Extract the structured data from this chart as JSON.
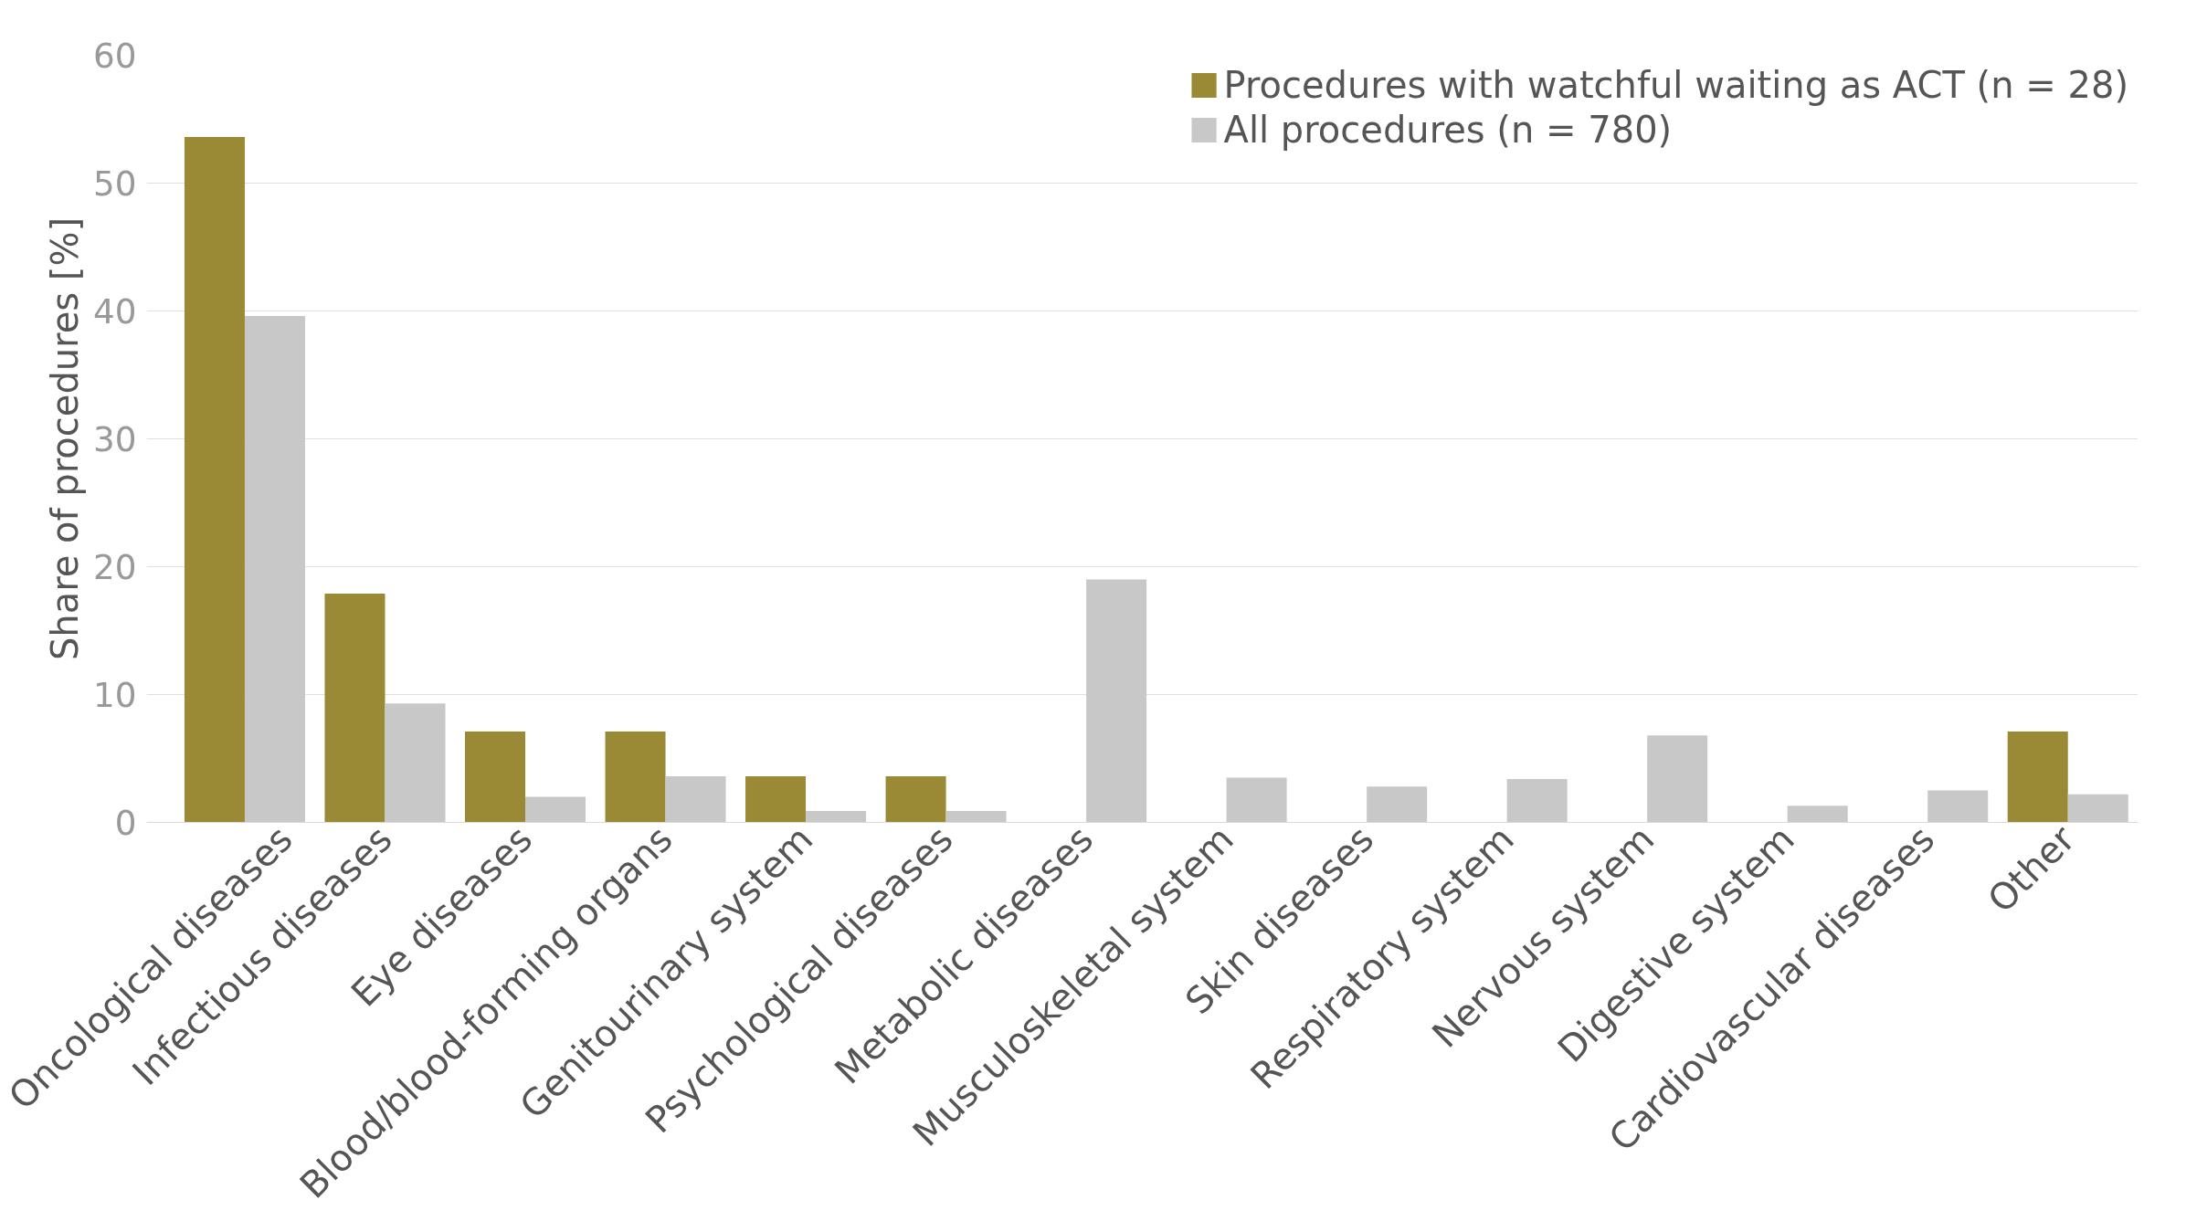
{
  "chart_data": {
    "type": "bar",
    "ylabel": "Share of procedures [%]",
    "categories": [
      "Oncological diseases",
      "Infectious diseases",
      "Eye diseases",
      "Blood/blood-forming organs",
      "Genitourinary system",
      "Psychological diseases",
      "Metabolic diseases",
      "Musculoskeletal system",
      "Skin diseases",
      "Respiratory system",
      "Nervous system",
      "Digestive system",
      "Cardiovascular diseases",
      "Other"
    ],
    "series": [
      {
        "name": "Procedures with watchful waiting as ACT (n = 28)",
        "color": "#9a8935",
        "values": [
          53.6,
          17.9,
          7.1,
          7.1,
          3.6,
          3.6,
          0,
          0,
          0,
          0,
          0,
          0,
          0,
          7.1
        ]
      },
      {
        "name": "All procedures (n = 780)",
        "color": "#c8c8c8",
        "values": [
          39.6,
          9.3,
          2.0,
          3.6,
          0.9,
          0.9,
          19.0,
          3.5,
          2.8,
          3.4,
          6.8,
          1.3,
          2.5,
          2.2
        ]
      }
    ],
    "ylim": [
      0,
      60
    ],
    "yticks": [
      0,
      10,
      20,
      30,
      40,
      50,
      60
    ],
    "grid": "y",
    "legend": "top right"
  }
}
